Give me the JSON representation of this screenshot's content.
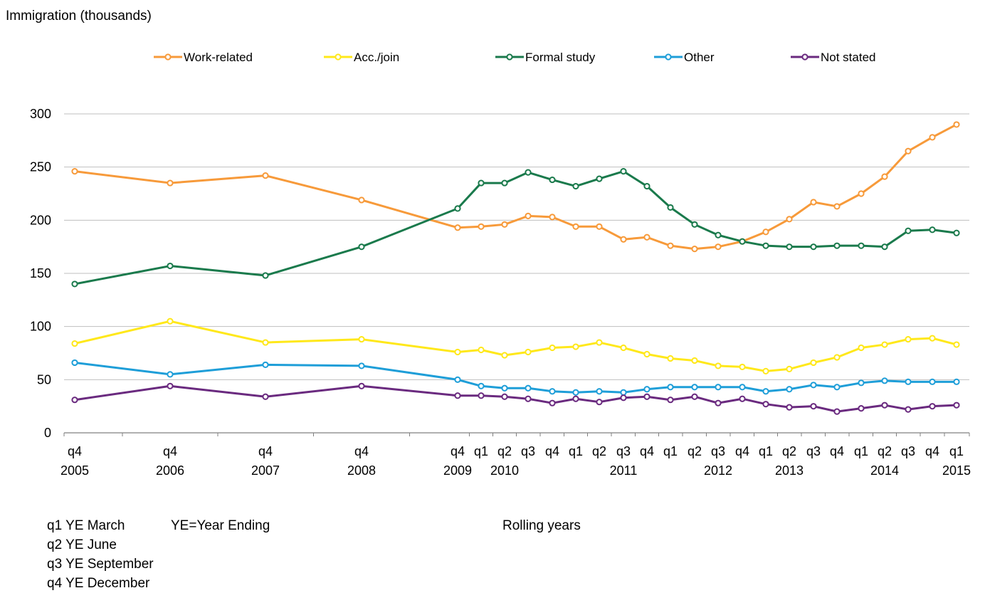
{
  "chart_data": {
    "type": "line",
    "ylabel": "Immigration (thousands)",
    "xlabel": "Rolling years",
    "ylim": [
      0,
      300
    ],
    "yticks": [
      0,
      50,
      100,
      150,
      200,
      250,
      300
    ],
    "grid": true,
    "legend_position": "top",
    "categories": [
      "q4 2005",
      "q4 2006",
      "q4 2007",
      "q4 2008",
      "q4 2009",
      "q1 2010",
      "q2 2010",
      "q3 2010",
      "q4 2010",
      "q1 2011",
      "q2 2011",
      "q3 2011",
      "q4 2011",
      "q1 2012",
      "q2 2012",
      "q3 2012",
      "q4 2012",
      "q1 2013",
      "q2 2013",
      "q3 2013",
      "q4 2013",
      "q1 2014",
      "q2 2014",
      "q3 2014",
      "q4 2014",
      "q1 2015"
    ],
    "x_tick_top": [
      "q4",
      "q4",
      "q4",
      "q4",
      "q4",
      "q1",
      "q2",
      "q3",
      "q4",
      "q1",
      "q2",
      "q3",
      "q4",
      "q1",
      "q2",
      "q3",
      "q4",
      "q1",
      "q2",
      "q3",
      "q4",
      "q1",
      "q2",
      "q3",
      "q4",
      "q1"
    ],
    "x_tick_bottom": [
      "2005",
      "2006",
      "2007",
      "2008",
      "2009",
      "",
      "2010",
      "",
      "",
      "",
      "",
      "2011",
      "",
      "",
      "",
      "2012",
      "",
      "",
      "2013",
      "",
      "",
      "",
      "2014",
      "",
      "",
      "2015"
    ],
    "series": [
      {
        "name": "Work-related",
        "color": "#f79a3a",
        "values": [
          246,
          235,
          242,
          219,
          193,
          194,
          196,
          204,
          203,
          194,
          194,
          182,
          184,
          176,
          173,
          175,
          180,
          189,
          201,
          217,
          213,
          225,
          241,
          265,
          278,
          290
        ]
      },
      {
        "name": "Acc./join",
        "color": "#ffe81a",
        "values": [
          84,
          105,
          85,
          88,
          76,
          78,
          73,
          76,
          80,
          81,
          85,
          80,
          74,
          70,
          68,
          63,
          62,
          58,
          60,
          66,
          71,
          80,
          83,
          88,
          89,
          83
        ]
      },
      {
        "name": "Formal study",
        "color": "#1a7a4c",
        "values": [
          140,
          157,
          148,
          175,
          211,
          235,
          235,
          245,
          238,
          232,
          239,
          246,
          232,
          212,
          196,
          186,
          180,
          176,
          175,
          175,
          176,
          176,
          175,
          190,
          191,
          188
        ]
      },
      {
        "name": "Other",
        "color": "#1e9ed8",
        "values": [
          66,
          55,
          64,
          63,
          50,
          44,
          42,
          42,
          39,
          38,
          39,
          38,
          41,
          43,
          43,
          43,
          43,
          39,
          41,
          45,
          43,
          47,
          49,
          48,
          48,
          48
        ]
      },
      {
        "name": "Not stated",
        "color": "#6a2a7f",
        "values": [
          31,
          44,
          34,
          44,
          35,
          35,
          34,
          32,
          28,
          32,
          29,
          33,
          34,
          31,
          34,
          28,
          32,
          27,
          24,
          25,
          20,
          23,
          26,
          22,
          25,
          26
        ]
      }
    ]
  },
  "footnotes": {
    "q1": "q1 YE March",
    "ye": "YE=Year Ending",
    "q2": "q2 YE June",
    "q3": "q3 YE September",
    "q4": "q4 YE December"
  }
}
